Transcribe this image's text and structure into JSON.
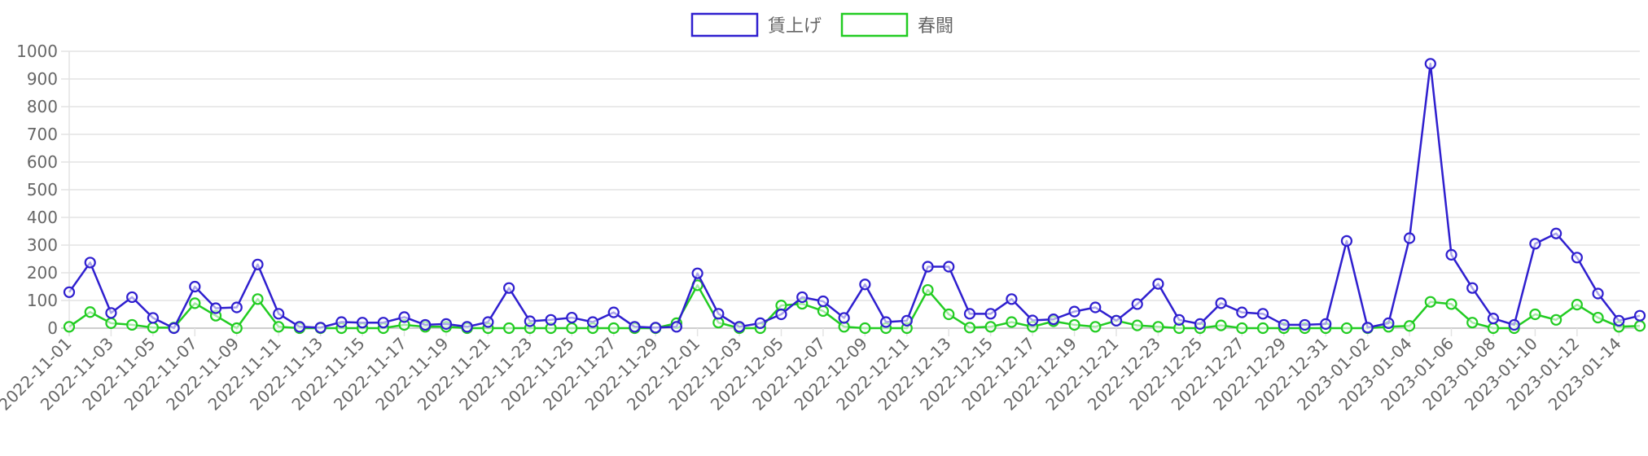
{
  "chart_data": {
    "type": "line",
    "x": [
      "2022-11-01",
      "2022-11-02",
      "2022-11-03",
      "2022-11-04",
      "2022-11-05",
      "2022-11-06",
      "2022-11-07",
      "2022-11-08",
      "2022-11-09",
      "2022-11-10",
      "2022-11-11",
      "2022-11-12",
      "2022-11-13",
      "2022-11-14",
      "2022-11-15",
      "2022-11-16",
      "2022-11-17",
      "2022-11-18",
      "2022-11-19",
      "2022-11-20",
      "2022-11-21",
      "2022-11-22",
      "2022-11-23",
      "2022-11-24",
      "2022-11-25",
      "2022-11-26",
      "2022-11-27",
      "2022-11-28",
      "2022-11-29",
      "2022-11-30",
      "2022-12-01",
      "2022-12-02",
      "2022-12-03",
      "2022-12-04",
      "2022-12-05",
      "2022-12-06",
      "2022-12-07",
      "2022-12-08",
      "2022-12-09",
      "2022-12-10",
      "2022-12-11",
      "2022-12-12",
      "2022-12-13",
      "2022-12-14",
      "2022-12-15",
      "2022-12-16",
      "2022-12-17",
      "2022-12-18",
      "2022-12-19",
      "2022-12-20",
      "2022-12-21",
      "2022-12-22",
      "2022-12-23",
      "2022-12-24",
      "2022-12-25",
      "2022-12-26",
      "2022-12-27",
      "2022-12-28",
      "2022-12-29",
      "2022-12-30",
      "2022-12-31",
      "2023-01-01",
      "2023-01-02",
      "2023-01-03",
      "2023-01-04",
      "2023-01-05",
      "2023-01-06",
      "2023-01-07",
      "2023-01-08",
      "2023-01-09",
      "2023-01-10",
      "2023-01-11",
      "2023-01-12",
      "2023-01-13",
      "2023-01-14",
      "2023-01-15"
    ],
    "tick_labels": [
      "2022-11-01",
      "2022-11-03",
      "2022-11-05",
      "2022-11-07",
      "2022-11-09",
      "2022-11-11",
      "2022-11-13",
      "2022-11-15",
      "2022-11-17",
      "2022-11-19",
      "2022-11-21",
      "2022-11-23",
      "2022-11-25",
      "2022-11-27",
      "2022-11-29",
      "2022-12-01",
      "2022-12-03",
      "2022-12-05",
      "2022-12-07",
      "2022-12-09",
      "2022-12-11",
      "2022-12-13",
      "2022-12-15",
      "2022-12-17",
      "2022-12-19",
      "2022-12-21",
      "2022-12-23",
      "2022-12-25",
      "2022-12-27",
      "2022-12-29",
      "2022-12-31",
      "2023-01-02",
      "2023-01-04",
      "2023-01-06",
      "2023-01-08",
      "2023-01-10",
      "2023-01-12",
      "2023-01-14"
    ],
    "series": [
      {
        "name": "賃上げ",
        "color": "#2f1fcf",
        "values": [
          130,
          237,
          55,
          112,
          37,
          0,
          150,
          72,
          75,
          230,
          52,
          5,
          2,
          22,
          20,
          20,
          40,
          12,
          15,
          5,
          22,
          145,
          25,
          30,
          38,
          22,
          57,
          5,
          2,
          5,
          198,
          52,
          5,
          18,
          50,
          112,
          97,
          37,
          158,
          22,
          27,
          222,
          222,
          52,
          52,
          105,
          28,
          32,
          60,
          75,
          27,
          87,
          160,
          30,
          15,
          90,
          57,
          52,
          12,
          12,
          15,
          315,
          2,
          18,
          325,
          955,
          265,
          145,
          35,
          12,
          305,
          342,
          255,
          125,
          27,
          45
        ]
      },
      {
        "name": "春闘",
        "color": "#22cc22",
        "values": [
          5,
          58,
          18,
          12,
          2,
          2,
          90,
          45,
          0,
          105,
          5,
          0,
          0,
          0,
          0,
          0,
          12,
          5,
          5,
          0,
          0,
          0,
          0,
          0,
          0,
          0,
          0,
          0,
          0,
          18,
          155,
          20,
          0,
          0,
          82,
          88,
          62,
          5,
          0,
          0,
          0,
          138,
          50,
          2,
          5,
          22,
          5,
          25,
          12,
          5,
          27,
          10,
          5,
          0,
          0,
          10,
          0,
          0,
          0,
          0,
          0,
          0,
          0,
          5,
          8,
          95,
          87,
          20,
          0,
          0,
          50,
          30,
          85,
          38,
          5,
          8
        ]
      }
    ],
    "ylim": [
      0,
      1000
    ],
    "y_ticks": [
      0,
      100,
      200,
      300,
      400,
      500,
      600,
      700,
      800,
      900,
      1000
    ],
    "grid": true,
    "legend_position": "top-center",
    "title": "",
    "xlabel": "",
    "ylabel": ""
  }
}
